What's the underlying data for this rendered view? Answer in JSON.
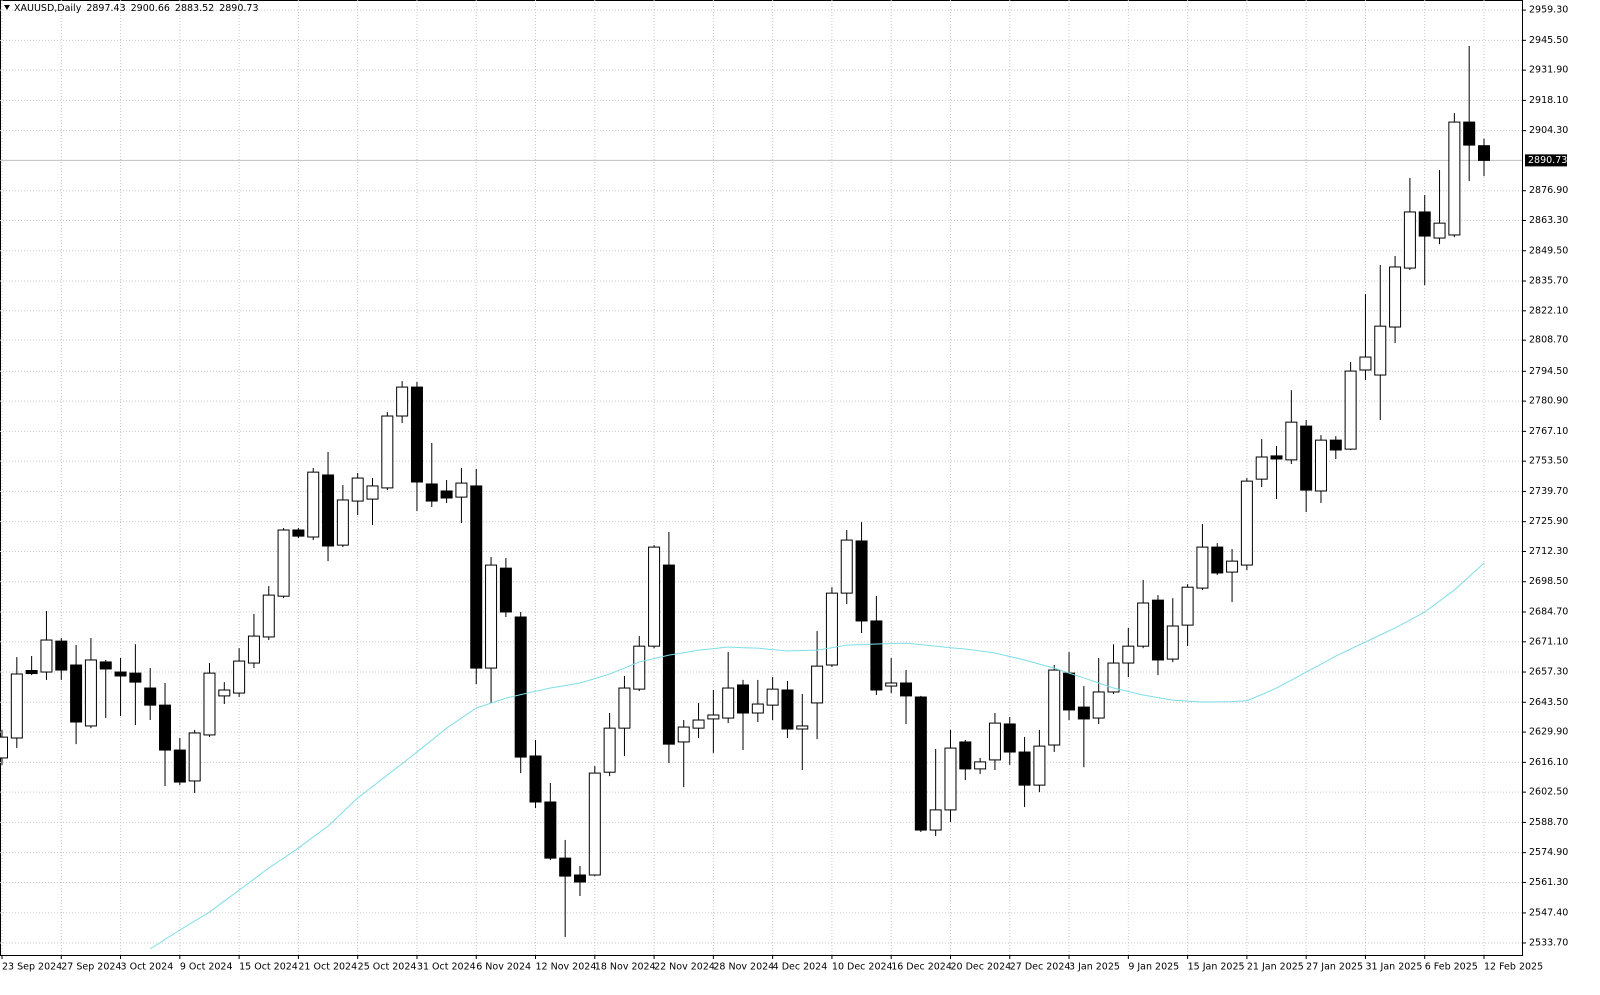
{
  "chart_data": {
    "type": "candlestick",
    "title": "XAUUSD,Daily",
    "categories": [
      "23 Sep 2024",
      null,
      null,
      null,
      "27 Sep 2024",
      null,
      null,
      null,
      "3 Oct 2024",
      null,
      null,
      null,
      "9 Oct 2024",
      null,
      null,
      null,
      "15 Oct 2024",
      null,
      null,
      null,
      "21 Oct 2024",
      null,
      null,
      null,
      "25 Oct 2024",
      null,
      null,
      null,
      "31 Oct 2024",
      null,
      null,
      null,
      "6 Nov 2024",
      null,
      null,
      null,
      "12 Nov 2024",
      null,
      null,
      null,
      "18 Nov 2024",
      null,
      null,
      null,
      "22 Nov 2024",
      null,
      null,
      null,
      "28 Nov 2024",
      null,
      null,
      null,
      "4 Dec 2024",
      null,
      null,
      null,
      "10 Dec 2024",
      null,
      null,
      null,
      "16 Dec 2024",
      null,
      null,
      null,
      "20 Dec 2024",
      null,
      null,
      null,
      "27 Dec 2024",
      null,
      null,
      null,
      "3 Jan 2025",
      null,
      null,
      null,
      "9 Jan 2025",
      null,
      null,
      null,
      "15 Jan 2025",
      null,
      null,
      null,
      "21 Jan 2025",
      null,
      null,
      null,
      "27 Jan 2025",
      null,
      null,
      null,
      "31 Jan 2025",
      null,
      null,
      null,
      "6 Feb 2025",
      null,
      null,
      null,
      "12 Feb 2025"
    ],
    "open": [
      2618.1,
      2627.2,
      2658.0,
      2657.3,
      2671.4,
      2660.5,
      2632.7,
      2661.9,
      2657.3,
      2656.8,
      2650.0,
      2642.2,
      2621.7,
      2607.6,
      2628.6,
      2646.4,
      2647.7,
      2661.4,
      2673.3,
      2691.9,
      2722.1,
      2718.9,
      2747.2,
      2715.2,
      2735.3,
      2736.2,
      2741.3,
      2774.1,
      2787.3,
      2743.1,
      2739.9,
      2737.1,
      2742.2,
      2659.1,
      2704.7,
      2682.4,
      2619.0,
      2598.0,
      2572.4,
      2564.7,
      2564.7,
      2611.6,
      2631.7,
      2649.5,
      2669.1,
      2706.1,
      2625.4,
      2631.7,
      2635.9,
      2636.3,
      2651.4,
      2638.6,
      2642.2,
      2649.1,
      2631.3,
      2643.2,
      2660.5,
      2693.3,
      2717.1,
      2680.6,
      2650.9,
      2652.3,
      2645.9,
      2585.2,
      2594.4,
      2625.4,
      2613.1,
      2617.2,
      2633.6,
      2620.8,
      2605.7,
      2624.0,
      2656.8,
      2641.3,
      2636.3,
      2648.2,
      2661.4,
      2669.1,
      2690.1,
      2663.2,
      2678.7,
      2695.6,
      2714.3,
      2702.9,
      2706.1,
      2745.3,
      2755.9,
      2754.1,
      2769.5,
      2739.9,
      2763.1,
      2759.0,
      2795.1,
      2792.8,
      2814.7,
      2841.6,
      2867.2,
      2855.3,
      2856.7,
      2908.2,
      2897.43
    ],
    "high": [
      2630.9,
      2664.1,
      2664.6,
      2685.1,
      2672.8,
      2669.6,
      2672.8,
      2662.8,
      2663.7,
      2670.0,
      2659.1,
      2652.3,
      2627.2,
      2630.9,
      2661.4,
      2652.7,
      2668.2,
      2683.8,
      2696.5,
      2723.0,
      2723.0,
      2750.4,
      2757.7,
      2742.6,
      2748.1,
      2745.8,
      2775.9,
      2790.0,
      2789.6,
      2761.8,
      2744.9,
      2750.4,
      2749.9,
      2709.8,
      2709.3,
      2684.7,
      2626.3,
      2606.7,
      2580.7,
      2568.8,
      2614.4,
      2638.6,
      2655.5,
      2673.7,
      2715.2,
      2721.2,
      2635.4,
      2643.2,
      2649.1,
      2666.4,
      2653.7,
      2653.7,
      2655.0,
      2653.2,
      2647.3,
      2676.0,
      2696.0,
      2722.1,
      2725.7,
      2692.0,
      2663.7,
      2658.2,
      2646.4,
      2622.2,
      2630.9,
      2626.3,
      2618.1,
      2638.6,
      2636.8,
      2627.7,
      2630.9,
      2660.5,
      2666.4,
      2650.9,
      2663.7,
      2670.0,
      2677.4,
      2699.3,
      2692.4,
      2691.0,
      2697.4,
      2724.8,
      2716.1,
      2713.4,
      2745.8,
      2763.6,
      2760.4,
      2785.9,
      2772.3,
      2765.4,
      2764.9,
      2798.7,
      2829.7,
      2843.0,
      2847.1,
      2882.7,
      2874.9,
      2886.3,
      2912.3,
      2942.9,
      2900.66
    ],
    "low": [
      2614.9,
      2622.6,
      2655.9,
      2653.7,
      2653.7,
      2624.4,
      2631.7,
      2636.3,
      2637.2,
      2633.1,
      2635.4,
      2605.3,
      2605.7,
      2602.1,
      2627.7,
      2642.7,
      2645.9,
      2659.1,
      2671.9,
      2691.0,
      2718.4,
      2717.5,
      2707.9,
      2714.3,
      2728.9,
      2724.4,
      2740.3,
      2770.9,
      2730.7,
      2732.6,
      2734.4,
      2725.3,
      2651.8,
      2643.2,
      2682.4,
      2611.2,
      2595.2,
      2571.5,
      2536.4,
      2555.1,
      2564.2,
      2609.8,
      2619.0,
      2648.6,
      2668.2,
      2615.8,
      2604.8,
      2627.2,
      2620.4,
      2634.0,
      2621.7,
      2634.5,
      2635.4,
      2627.2,
      2612.6,
      2626.7,
      2659.6,
      2688.3,
      2675.1,
      2646.8,
      2647.7,
      2633.6,
      2584.3,
      2582.5,
      2588.9,
      2608.0,
      2610.8,
      2612.6,
      2614.9,
      2595.7,
      2602.5,
      2620.8,
      2635.4,
      2613.9,
      2633.6,
      2647.3,
      2655.0,
      2668.2,
      2655.9,
      2661.8,
      2669.2,
      2694.7,
      2701.6,
      2689.2,
      2703.8,
      2741.7,
      2736.2,
      2752.2,
      2730.3,
      2734.4,
      2754.5,
      2758.6,
      2790.5,
      2772.3,
      2807.4,
      2840.7,
      2833.8,
      2852.5,
      2855.7,
      2881.3,
      2883.52
    ],
    "close": [
      2627.6,
      2656.4,
      2656.6,
      2671.9,
      2658.2,
      2634.5,
      2662.8,
      2658.7,
      2655.5,
      2652.7,
      2642.2,
      2621.7,
      2607.1,
      2629.5,
      2656.8,
      2649.1,
      2662.3,
      2673.7,
      2692.4,
      2722.1,
      2719.3,
      2748.5,
      2714.8,
      2735.8,
      2745.8,
      2742.2,
      2774.1,
      2787.3,
      2744.0,
      2735.3,
      2736.7,
      2743.5,
      2659.1,
      2706.1,
      2684.7,
      2618.5,
      2598.0,
      2572.4,
      2564.2,
      2561.5,
      2611.2,
      2631.7,
      2650.0,
      2669.1,
      2714.3,
      2624.4,
      2632.2,
      2635.4,
      2637.7,
      2650.0,
      2638.6,
      2642.7,
      2649.5,
      2631.3,
      2632.7,
      2660.0,
      2693.3,
      2717.5,
      2680.6,
      2649.1,
      2652.3,
      2646.4,
      2585.2,
      2594.4,
      2622.6,
      2613.1,
      2616.3,
      2634.0,
      2620.8,
      2605.7,
      2623.5,
      2658.2,
      2640.0,
      2635.9,
      2648.2,
      2661.4,
      2669.1,
      2688.8,
      2662.8,
      2678.3,
      2696.0,
      2714.3,
      2702.5,
      2707.9,
      2744.4,
      2755.4,
      2754.5,
      2771.3,
      2740.3,
      2763.1,
      2758.6,
      2794.6,
      2801.0,
      2815.1,
      2842.1,
      2867.2,
      2856.2,
      2862.1,
      2908.2,
      2897.7,
      2890.73
    ],
    "ma": {
      "color": "#7fdde8",
      "values": [
        null,
        null,
        null,
        null,
        null,
        null,
        null,
        null,
        null,
        null,
        2531.0,
        2535.3,
        2539.6,
        2543.7,
        2547.8,
        2552.8,
        2557.8,
        2562.8,
        2567.9,
        2572.4,
        2577.0,
        2582.0,
        2587.0,
        2593.4,
        2599.8,
        2605.0,
        2610.3,
        2615.5,
        2620.8,
        2626.2,
        2631.7,
        2636.3,
        2640.9,
        2643.1,
        2645.4,
        2647.0,
        2648.5,
        2650.0,
        2651.1,
        2652.3,
        2654.3,
        2656.4,
        2659.1,
        2661.9,
        2663.4,
        2665.0,
        2666.1,
        2667.3,
        2668.0,
        2668.7,
        2668.4,
        2668.2,
        2667.5,
        2666.9,
        2667.1,
        2667.3,
        2668.4,
        2669.6,
        2669.8,
        2670.1,
        2670.3,
        2670.5,
        2669.8,
        2669.1,
        2668.4,
        2667.8,
        2666.9,
        2666.0,
        2664.4,
        2662.8,
        2660.9,
        2659.1,
        2656.8,
        2654.6,
        2652.3,
        2650.0,
        2648.4,
        2646.8,
        2645.6,
        2644.5,
        2644.0,
        2643.6,
        2643.7,
        2643.8,
        2644.2,
        2647.0,
        2650.0,
        2653.6,
        2657.3,
        2660.9,
        2664.6,
        2667.8,
        2671.0,
        2674.2,
        2677.4,
        2681.0,
        2684.7,
        2689.7,
        2694.7,
        2700.8,
        2707.0
      ]
    },
    "up_color": "#ffffff",
    "down_color": "#000000",
    "ylim": [
      2528.2,
      2963.9
    ],
    "yticks": [
      {
        "value": 2533.7,
        "label": "2533.70"
      },
      {
        "value": 2547.4,
        "label": "2547.40"
      },
      {
        "value": 2561.3,
        "label": "2561.30"
      },
      {
        "value": 2574.9,
        "label": "2574.90"
      },
      {
        "value": 2588.7,
        "label": "2588.70"
      },
      {
        "value": 2602.5,
        "label": "2602.50"
      },
      {
        "value": 2616.1,
        "label": "2616.10"
      },
      {
        "value": 2629.9,
        "label": "2629.90"
      },
      {
        "value": 2643.5,
        "label": "2643.50"
      },
      {
        "value": 2657.3,
        "label": "2657.30"
      },
      {
        "value": 2671.1,
        "label": "2671.10"
      },
      {
        "value": 2684.7,
        "label": "2684.70"
      },
      {
        "value": 2698.5,
        "label": "2698.50"
      },
      {
        "value": 2712.3,
        "label": "2712.30"
      },
      {
        "value": 2725.9,
        "label": "2725.90"
      },
      {
        "value": 2739.7,
        "label": "2739.70"
      },
      {
        "value": 2753.5,
        "label": "2753.50"
      },
      {
        "value": 2767.1,
        "label": "2767.10"
      },
      {
        "value": 2780.9,
        "label": "2780.90"
      },
      {
        "value": 2794.5,
        "label": "2794.50"
      },
      {
        "value": 2808.7,
        "label": "2808.70"
      },
      {
        "value": 2822.1,
        "label": "2822.10"
      },
      {
        "value": 2835.7,
        "label": "2835.70"
      },
      {
        "value": 2849.5,
        "label": "2849.50"
      },
      {
        "value": 2863.3,
        "label": "2863.30"
      },
      {
        "value": 2876.9,
        "label": "2876.90"
      },
      {
        "value": 2904.3,
        "label": "2904.30"
      },
      {
        "value": 2918.1,
        "label": "2918.10"
      },
      {
        "value": 2931.9,
        "label": "2931.90"
      },
      {
        "value": 2945.5,
        "label": "2945.50"
      },
      {
        "value": 2959.3,
        "label": "2959.30"
      }
    ],
    "grid": true
  }
}
